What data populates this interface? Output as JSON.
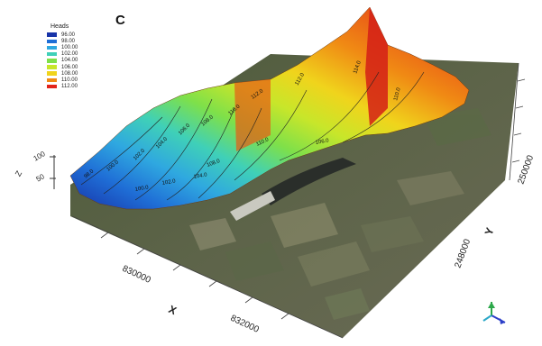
{
  "panel_label": "C",
  "legend": {
    "title": "Heads",
    "entries": [
      {
        "label": "96.00",
        "color": "#1733a8"
      },
      {
        "label": "98.00",
        "color": "#1f6ed6"
      },
      {
        "label": "100.00",
        "color": "#2fa8e0"
      },
      {
        "label": "102.00",
        "color": "#3fd0b8"
      },
      {
        "label": "104.00",
        "color": "#7ee04a"
      },
      {
        "label": "106.00",
        "color": "#c8e62a"
      },
      {
        "label": "108.00",
        "color": "#f0d41c"
      },
      {
        "label": "110.00",
        "color": "#f08a14"
      },
      {
        "label": "112.00",
        "color": "#e3241a"
      }
    ]
  },
  "axes": {
    "x_label": "X",
    "x_ticks": [
      "830000",
      "832000"
    ],
    "y_label": "Y",
    "y_ticks": [
      "248000",
      "250000"
    ],
    "z_label": "Z",
    "z_ticks": [
      "100",
      "50"
    ]
  },
  "contour_labels": [
    "98.0",
    "100.0",
    "102.0",
    "104.0",
    "106.0",
    "108.0",
    "110.0",
    "112.0",
    "108.0",
    "110.0",
    "112.0",
    "114.0",
    "110.0",
    "106.0",
    "104.0",
    "102.0",
    "100.0"
  ],
  "orientation_axes": {
    "x": "X",
    "y": "Y",
    "z": "Z"
  }
}
